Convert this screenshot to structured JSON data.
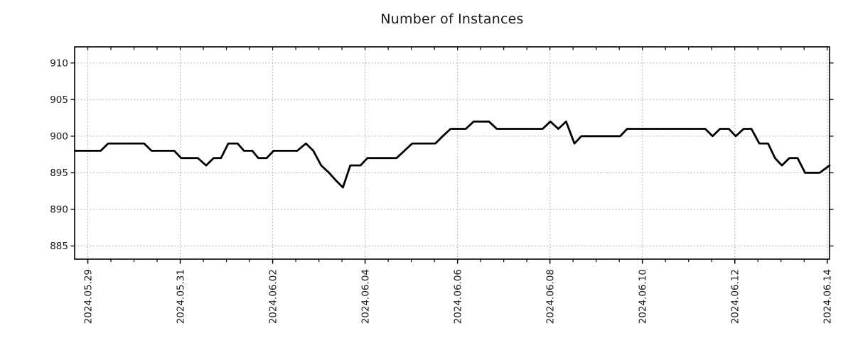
{
  "title": "Number of Instances",
  "colors": {
    "line": "#000000",
    "grid": "#ababab",
    "axis": "#000000",
    "text": "#1a1a1a",
    "background": "#ffffff"
  },
  "chart_data": {
    "type": "line",
    "title": "Number of Instances",
    "xlabel": "",
    "ylabel": "",
    "legend": "none",
    "grid": "dotted major gridlines, both axes",
    "xlim_days": [
      -0.285,
      16.05
    ],
    "ylim": [
      883.2,
      912.2
    ],
    "y_ticks": [
      885,
      890,
      895,
      900,
      905,
      910
    ],
    "x_ticks_major": [
      {
        "day": 0,
        "label": "2024.05.29"
      },
      {
        "day": 2,
        "label": "2024.05.31"
      },
      {
        "day": 4,
        "label": "2024.06.02"
      },
      {
        "day": 6,
        "label": "2024.06.04"
      },
      {
        "day": 8,
        "label": "2024.06.06"
      },
      {
        "day": 10,
        "label": "2024.06.08"
      },
      {
        "day": 12,
        "label": "2024.06.10"
      },
      {
        "day": 14,
        "label": "2024.06.12"
      },
      {
        "day": 16,
        "label": "2024.06.14"
      }
    ],
    "x_minor_step_days": 0.5,
    "series": [
      {
        "name": "Number of Instances",
        "color": "#000000",
        "points_format": "[days since 2024-05-29 00:00, instance count]",
        "points": [
          [
            -0.28,
            898
          ],
          [
            0.28,
            898
          ],
          [
            0.44,
            899
          ],
          [
            1.22,
            899
          ],
          [
            1.38,
            898
          ],
          [
            1.87,
            898
          ],
          [
            2.02,
            897
          ],
          [
            2.38,
            897
          ],
          [
            2.56,
            896
          ],
          [
            2.72,
            897
          ],
          [
            2.88,
            897
          ],
          [
            3.04,
            899
          ],
          [
            3.24,
            899
          ],
          [
            3.38,
            898
          ],
          [
            3.56,
            898
          ],
          [
            3.69,
            897
          ],
          [
            3.87,
            897
          ],
          [
            4.02,
            898
          ],
          [
            4.53,
            898
          ],
          [
            4.72,
            899
          ],
          [
            4.88,
            898
          ],
          [
            5.05,
            896
          ],
          [
            5.22,
            895
          ],
          [
            5.36,
            894
          ],
          [
            5.52,
            893
          ],
          [
            5.68,
            896
          ],
          [
            5.9,
            896
          ],
          [
            6.05,
            897
          ],
          [
            6.68,
            897
          ],
          [
            6.85,
            898
          ],
          [
            7.02,
            899
          ],
          [
            7.52,
            899
          ],
          [
            7.68,
            900
          ],
          [
            7.85,
            901
          ],
          [
            8.18,
            901
          ],
          [
            8.35,
            902
          ],
          [
            8.68,
            902
          ],
          [
            8.85,
            901
          ],
          [
            9.84,
            901
          ],
          [
            10.01,
            902
          ],
          [
            10.18,
            901
          ],
          [
            10.35,
            902
          ],
          [
            10.53,
            899
          ],
          [
            10.68,
            900
          ],
          [
            11.52,
            900
          ],
          [
            11.67,
            901
          ],
          [
            13.36,
            901
          ],
          [
            13.52,
            900
          ],
          [
            13.68,
            901
          ],
          [
            13.87,
            901
          ],
          [
            14.02,
            900
          ],
          [
            14.19,
            901
          ],
          [
            14.36,
            901
          ],
          [
            14.53,
            899
          ],
          [
            14.72,
            899
          ],
          [
            14.87,
            897
          ],
          [
            15.02,
            896
          ],
          [
            15.18,
            897
          ],
          [
            15.36,
            897
          ],
          [
            15.52,
            895
          ],
          [
            15.84,
            895
          ],
          [
            16.05,
            896
          ]
        ]
      }
    ]
  }
}
